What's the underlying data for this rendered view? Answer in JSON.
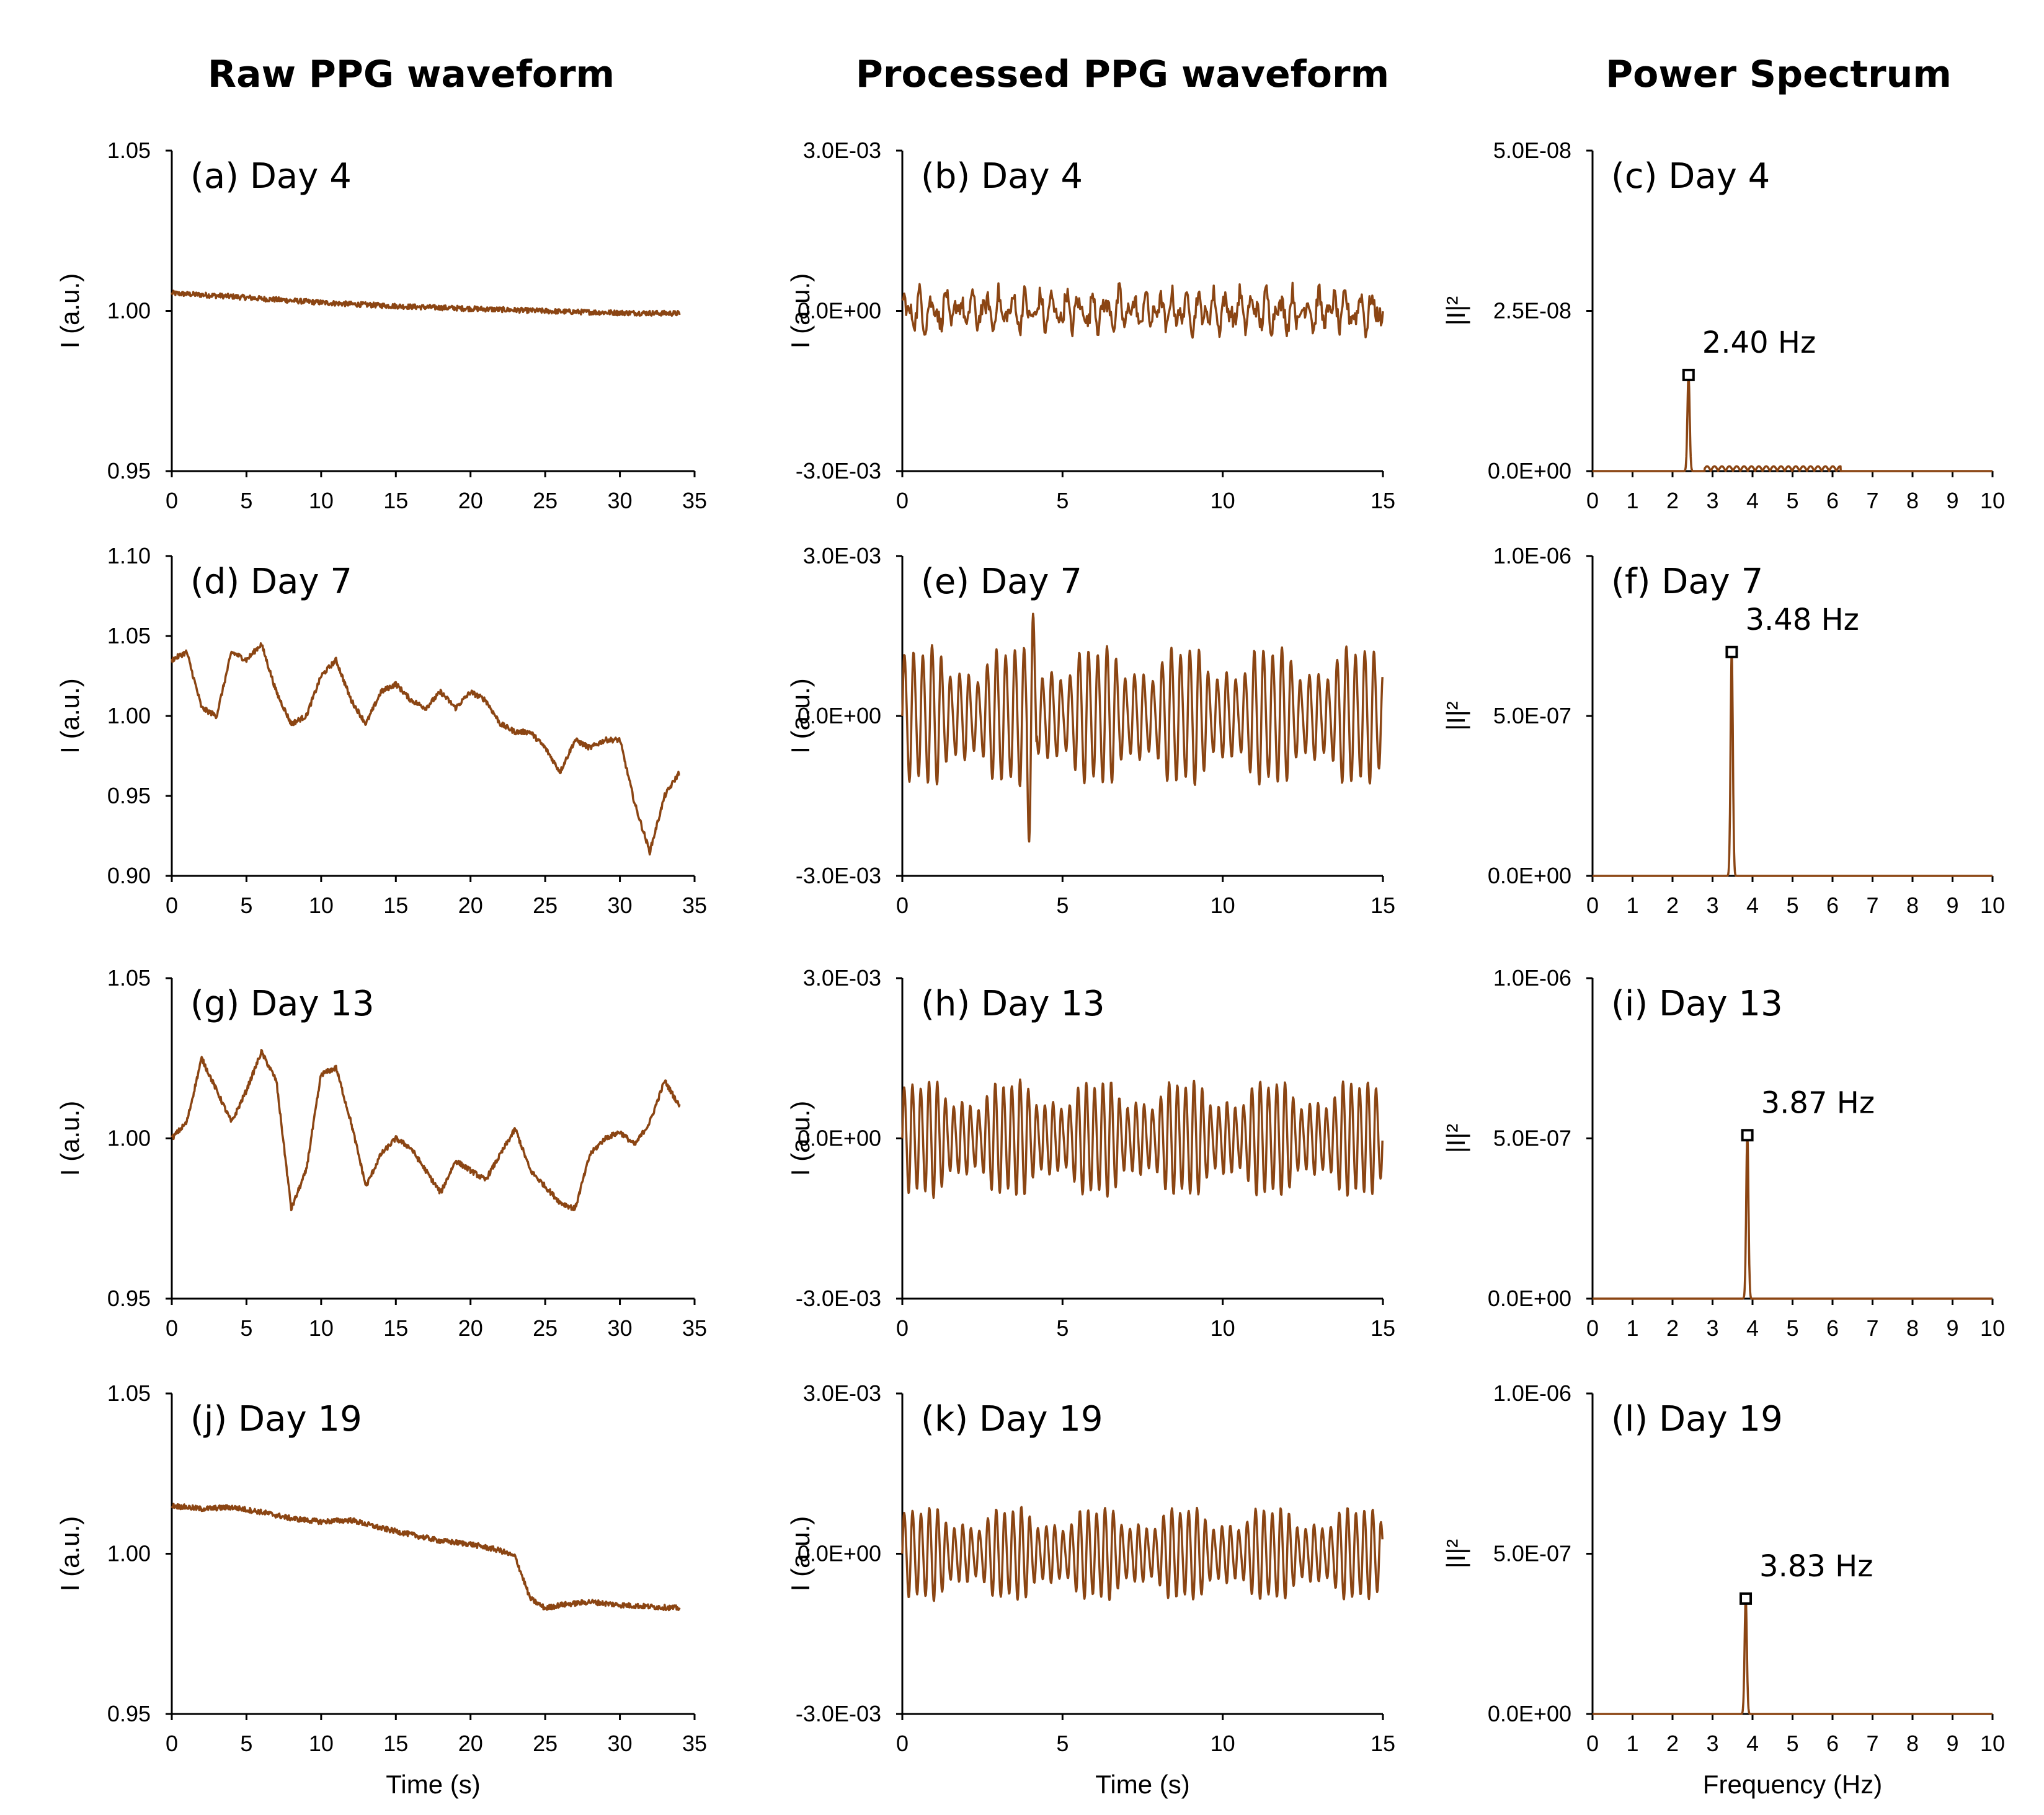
{
  "colors": {
    "trace": "#8B4513",
    "axis": "#000000"
  },
  "column_titles": [
    "Raw PPG waveform",
    "Processed PPG waveform",
    "Power Spectrum"
  ],
  "chart_data": [
    {
      "type": "line",
      "panel": "raw",
      "label": "(a) Day 4",
      "xlim": [
        0,
        35
      ],
      "xticks": [
        "0",
        "5",
        "10",
        "15",
        "20",
        "25",
        "30",
        "35"
      ],
      "ylim": [
        0.95,
        1.05
      ],
      "yticks": [
        "0.95",
        "1.00",
        "1.05"
      ],
      "ylabel": "I (a.u.)",
      "xlabel": "",
      "x": [
        0,
        2,
        4,
        6,
        8,
        10,
        12,
        14,
        16,
        18,
        20,
        22,
        24,
        26,
        28,
        30,
        32,
        34
      ],
      "y": [
        1.0055,
        1.005,
        1.0045,
        1.0038,
        1.0032,
        1.0026,
        1.0021,
        1.0017,
        1.0013,
        1.001,
        1.0007,
        1.0004,
        1.0001,
        0.9998,
        0.9996,
        0.9994,
        0.9993,
        0.9992
      ]
    },
    {
      "type": "line",
      "panel": "processed",
      "label": "(b) Day 4",
      "xlim": [
        0,
        15
      ],
      "xticks": [
        "0",
        "5",
        "10",
        "15"
      ],
      "ylim": [
        -0.003,
        0.003
      ],
      "yticks": [
        "-3.0E-03",
        "0.0E+00",
        "3.0E-03"
      ],
      "ylabel": "I (a.u.)",
      "xlabel": "",
      "amplitude_e3": [
        0.25,
        0.4,
        0.35
      ]
    },
    {
      "type": "line",
      "panel": "spectrum",
      "label": "(c) Day 4",
      "xlim": [
        0,
        10
      ],
      "xticks": [
        "0",
        "1",
        "2",
        "3",
        "4",
        "5",
        "6",
        "7",
        "8",
        "9",
        "10"
      ],
      "ylim": [
        0,
        5e-08
      ],
      "yticks": [
        "0.0E+00",
        "2.5E-08",
        "5.0E-08"
      ],
      "ylabel": "|I|²",
      "xlabel": "",
      "peak_freq": 2.4,
      "peak_value": 1.5e-08,
      "peak_label": "2.40 Hz"
    },
    {
      "type": "line",
      "panel": "raw",
      "label": "(d) Day 7",
      "xlim": [
        0,
        35
      ],
      "xticks": [
        "0",
        "5",
        "10",
        "15",
        "20",
        "25",
        "30",
        "35"
      ],
      "ylim": [
        0.9,
        1.1
      ],
      "yticks": [
        "0.90",
        "0.95",
        "1.00",
        "1.05",
        "1.10"
      ],
      "ylabel": "I (a.u.)",
      "xlabel": "",
      "x": [
        0,
        1,
        2,
        3,
        4,
        5,
        6,
        7,
        8,
        9,
        10,
        11,
        12,
        13,
        14,
        15,
        16,
        17,
        18,
        19,
        20,
        21,
        22,
        23,
        24,
        25,
        26,
        27,
        28,
        29,
        30,
        31,
        32,
        33,
        34
      ],
      "y": [
        1.035,
        1.04,
        1.005,
        1.0,
        1.04,
        1.035,
        1.045,
        1.015,
        0.995,
        1.0,
        1.025,
        1.035,
        1.01,
        0.995,
        1.015,
        1.02,
        1.01,
        1.005,
        1.015,
        1.005,
        1.015,
        1.01,
        0.995,
        0.99,
        0.99,
        0.98,
        0.965,
        0.985,
        0.98,
        0.985,
        0.985,
        0.945,
        0.915,
        0.95,
        0.965
      ]
    },
    {
      "type": "line",
      "panel": "processed",
      "label": "(e) Day 7",
      "xlim": [
        0,
        15
      ],
      "xticks": [
        "0",
        "5",
        "10",
        "15"
      ],
      "ylim": [
        -0.003,
        0.003
      ],
      "yticks": [
        "-3.0E-03",
        "0.0E+00",
        "3.0E-03"
      ],
      "ylabel": "I (a.u.)",
      "xlabel": "",
      "freq_hz": 3.48,
      "amplitude_e3": 1.2
    },
    {
      "type": "line",
      "panel": "spectrum",
      "label": "(f) Day 7",
      "xlim": [
        0,
        10
      ],
      "xticks": [
        "0",
        "1",
        "2",
        "3",
        "4",
        "5",
        "6",
        "7",
        "8",
        "9",
        "10"
      ],
      "ylim": [
        0,
        1e-06
      ],
      "yticks": [
        "0.0E+00",
        "5.0E-07",
        "1.0E-06"
      ],
      "ylabel": "|I|²",
      "xlabel": "",
      "peak_freq": 3.48,
      "peak_value": 7e-07,
      "peak_label": "3.48 Hz"
    },
    {
      "type": "line",
      "panel": "raw",
      "label": "(g) Day 13",
      "xlim": [
        0,
        35
      ],
      "xticks": [
        "0",
        "5",
        "10",
        "15",
        "20",
        "25",
        "30",
        "35"
      ],
      "ylim": [
        0.95,
        1.05
      ],
      "yticks": [
        "0.95",
        "1.00",
        "1.05"
      ],
      "ylabel": "I (a.u.)",
      "xlabel": "",
      "x": [
        0,
        1,
        2,
        3,
        4,
        5,
        6,
        7,
        8,
        9,
        10,
        11,
        12,
        13,
        14,
        15,
        16,
        17,
        18,
        19,
        20,
        21,
        22,
        23,
        24,
        25,
        26,
        27,
        28,
        29,
        30,
        31,
        32,
        33,
        34
      ],
      "y": [
        1.0,
        1.005,
        1.025,
        1.015,
        1.005,
        1.015,
        1.027,
        1.018,
        0.978,
        0.99,
        1.02,
        1.022,
        1.005,
        0.985,
        0.995,
        1.0,
        0.997,
        0.99,
        0.983,
        0.993,
        0.99,
        0.987,
        0.995,
        1.003,
        0.99,
        0.985,
        0.98,
        0.978,
        0.995,
        1.0,
        1.002,
        0.998,
        1.005,
        1.018,
        1.01
      ]
    },
    {
      "type": "line",
      "panel": "processed",
      "label": "(h) Day 13",
      "xlim": [
        0,
        15
      ],
      "xticks": [
        "0",
        "5",
        "10",
        "15"
      ],
      "ylim": [
        -0.003,
        0.003
      ],
      "yticks": [
        "-3.0E-03",
        "0.0E+00",
        "3.0E-03"
      ],
      "ylabel": "I (a.u.)",
      "xlabel": "",
      "freq_hz": 3.87,
      "amplitude_e3": 1.0
    },
    {
      "type": "line",
      "panel": "spectrum",
      "label": "(i) Day 13",
      "xlim": [
        0,
        10
      ],
      "xticks": [
        "0",
        "1",
        "2",
        "3",
        "4",
        "5",
        "6",
        "7",
        "8",
        "9",
        "10"
      ],
      "ylim": [
        0,
        1e-06
      ],
      "yticks": [
        "0.0E+00",
        "5.0E-07",
        "1.0E-06"
      ],
      "ylabel": "|I|²",
      "xlabel": "",
      "peak_freq": 3.87,
      "peak_value": 5.1e-07,
      "peak_label": "3.87 Hz"
    },
    {
      "type": "line",
      "panel": "raw",
      "label": "(j) Day 19",
      "xlim": [
        0,
        35
      ],
      "xticks": [
        "0",
        "5",
        "10",
        "15",
        "20",
        "25",
        "30",
        "35"
      ],
      "ylim": [
        0.95,
        1.05
      ],
      "yticks": [
        "0.95",
        "1.00",
        "1.05"
      ],
      "ylabel": "I (a.u.)",
      "xlabel": "Time (s)",
      "x": [
        0,
        2,
        4,
        6,
        8,
        10,
        12,
        14,
        16,
        18,
        20,
        22,
        23,
        24,
        25,
        26,
        28,
        30,
        32,
        34
      ],
      "y": [
        1.015,
        1.014,
        1.0145,
        1.013,
        1.011,
        1.01,
        1.0105,
        1.008,
        1.006,
        1.004,
        1.003,
        1.001,
        0.999,
        0.986,
        0.983,
        0.984,
        0.985,
        0.984,
        0.9835,
        0.983
      ]
    },
    {
      "type": "line",
      "panel": "processed",
      "label": "(k) Day 19",
      "xlim": [
        0,
        15
      ],
      "xticks": [
        "0",
        "5",
        "10",
        "15"
      ],
      "ylim": [
        -0.003,
        0.003
      ],
      "yticks": [
        "-3.0E-03",
        "0.0E+00",
        "3.0E-03"
      ],
      "ylabel": "I (a.u.)",
      "xlabel": "Time (s)",
      "freq_hz": 3.83,
      "amplitude_e3": 0.8
    },
    {
      "type": "line",
      "panel": "spectrum",
      "label": "(l) Day 19",
      "xlim": [
        0,
        10
      ],
      "xticks": [
        "0",
        "1",
        "2",
        "3",
        "4",
        "5",
        "6",
        "7",
        "8",
        "9",
        "10"
      ],
      "ylim": [
        0,
        1e-06
      ],
      "yticks": [
        "0.0E+00",
        "5.0E-07",
        "1.0E-06"
      ],
      "ylabel": "|I|²",
      "xlabel": "Frequency (Hz)",
      "peak_freq": 3.83,
      "peak_value": 3.6e-07,
      "peak_label": "3.83 Hz"
    }
  ]
}
